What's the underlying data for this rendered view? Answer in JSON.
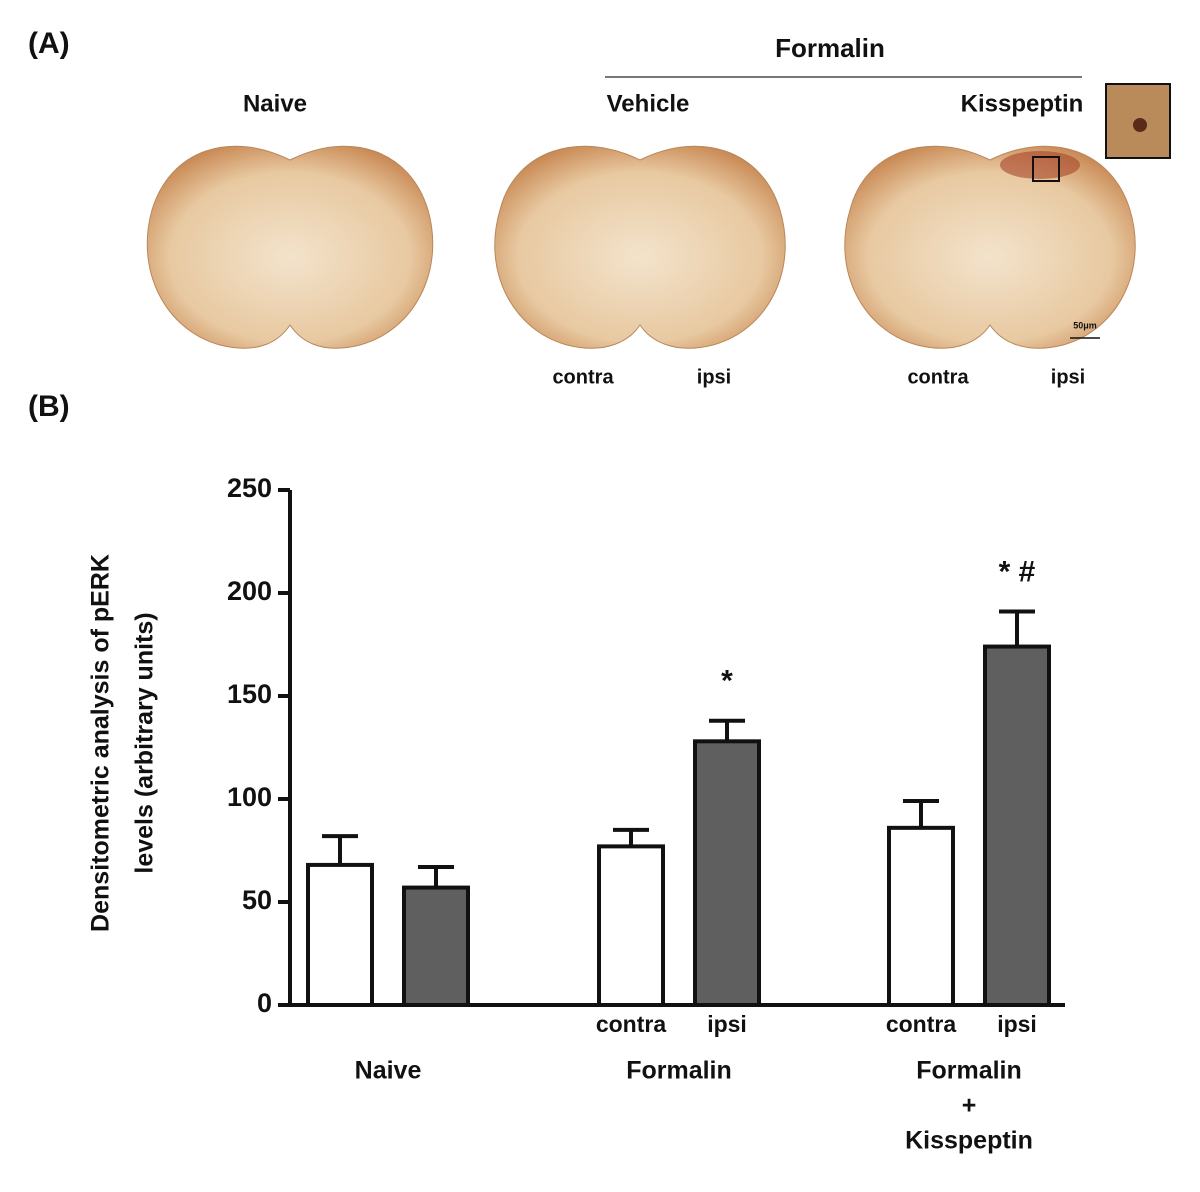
{
  "panel_a": {
    "label": "(A)",
    "group_header": "Formalin",
    "titles": [
      "Naive",
      "Vehicle",
      "Kisspeptin"
    ],
    "side_labels": [
      [
        "contra",
        "ipsi"
      ],
      [
        "contra",
        "ipsi"
      ]
    ],
    "scale_bar": "50μm"
  },
  "chart_data": {
    "type": "bar",
    "panel_label": "(B)",
    "ylabel": [
      "Densitometric analysis of pERK",
      "levels (arbitrary units)"
    ],
    "categories": [
      [
        "Naive"
      ],
      [
        "Formalin"
      ],
      [
        "Formalin",
        "+",
        "Kisspeptin"
      ]
    ],
    "bar_labels": [
      [
        null,
        null
      ],
      [
        "contra",
        "ipsi"
      ],
      [
        "contra",
        "ipsi"
      ]
    ],
    "series": [
      {
        "color": "#ffffff",
        "values": [
          68,
          77,
          86
        ],
        "errors": [
          14,
          8,
          13
        ],
        "annotations": [
          null,
          null,
          null
        ]
      },
      {
        "color": "#5f5f5f",
        "values": [
          57,
          128,
          174
        ],
        "errors": [
          10,
          10,
          17
        ],
        "annotations": [
          null,
          "*",
          "* #"
        ]
      }
    ],
    "ylim": [
      0,
      250
    ],
    "yticks": [
      0,
      50,
      100,
      150,
      200,
      250
    ]
  }
}
